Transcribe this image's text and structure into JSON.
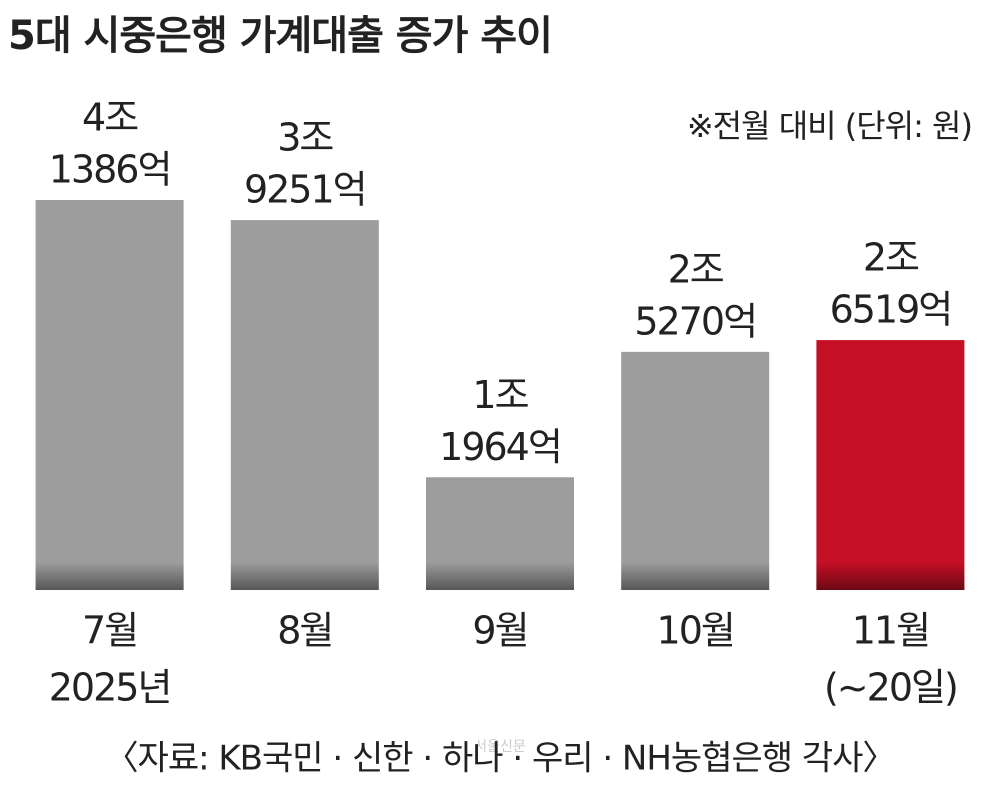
{
  "chart_data": {
    "type": "bar",
    "title": "5대 시중은행 가계대출 증가 추이",
    "subtitle": "※전월 대비  (단위: 원)",
    "categories": [
      "7월",
      "8월",
      "9월",
      "10월",
      "11월"
    ],
    "category_notes": [
      "2025년",
      null,
      null,
      null,
      "(~20일)"
    ],
    "values": [
      4138600000000,
      3925100000000,
      1196400000000,
      2527000000000,
      2651900000000
    ],
    "value_labels": [
      [
        "4조",
        "1386억"
      ],
      [
        "3조",
        "9251억"
      ],
      [
        "1조",
        "1964억"
      ],
      [
        "2조",
        "5270억"
      ],
      [
        "2조",
        "6519억"
      ]
    ],
    "colors": [
      "#9d9d9d",
      "#9d9d9d",
      "#9d9d9d",
      "#9d9d9d",
      "#c50f25"
    ],
    "source": "〈자료: KB국민 · 신한 · 하나 · 우리 · NH농협은행 각사〉",
    "watermark": "서울신문"
  }
}
